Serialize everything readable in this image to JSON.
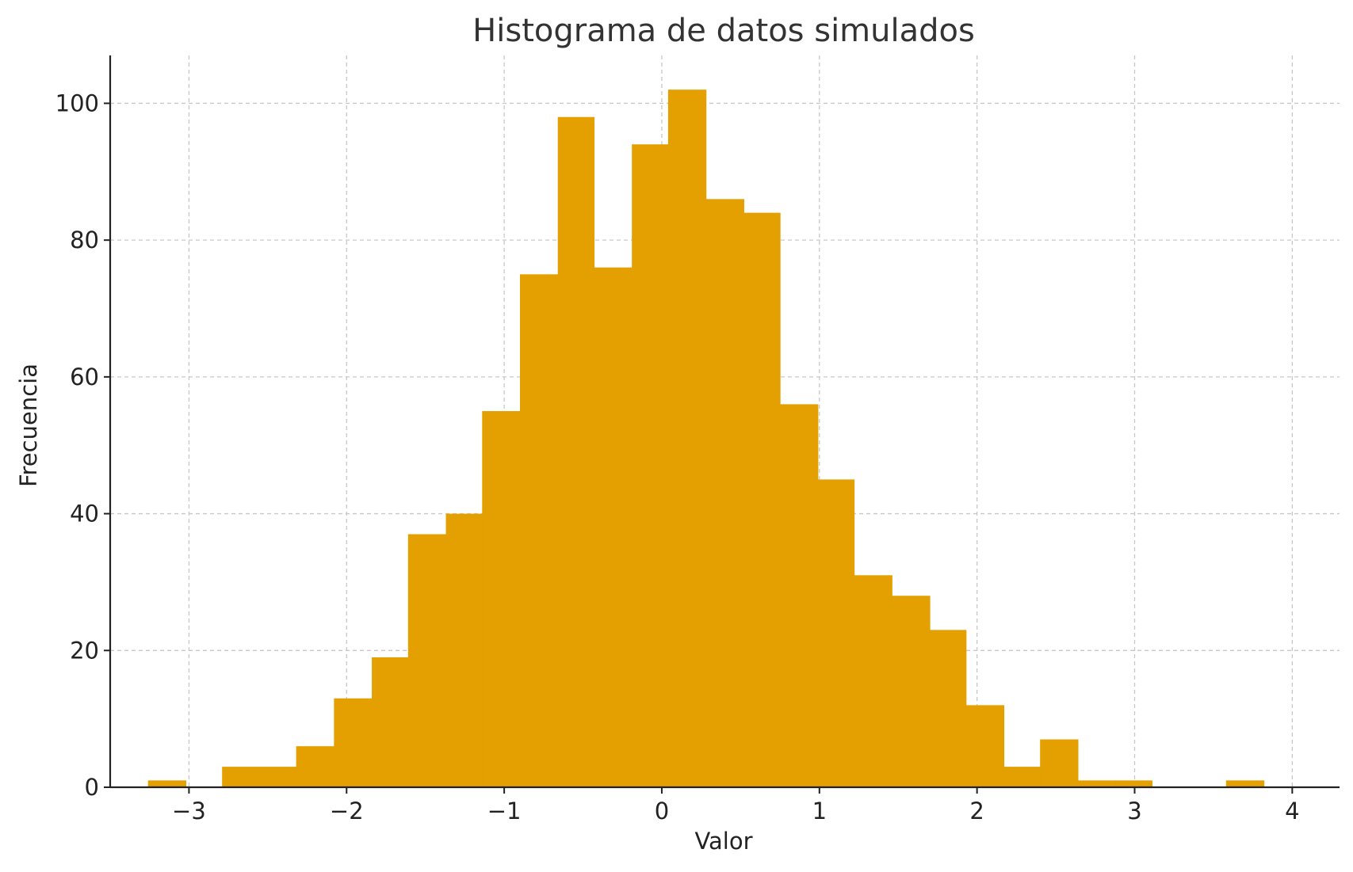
{
  "chart_data": {
    "type": "bar",
    "title": "Histograma de datos simulados",
    "xlabel": "Valor",
    "ylabel": "Frecuencia",
    "xlim": [
      -3.5,
      4.3
    ],
    "ylim": [
      0,
      107
    ],
    "x_ticks": [
      -3,
      -2,
      -1,
      0,
      1,
      2,
      3,
      4
    ],
    "x_tick_labels": [
      "−3",
      "−2",
      "−1",
      "0",
      "1",
      "2",
      "3",
      "4"
    ],
    "y_ticks": [
      0,
      20,
      40,
      60,
      80,
      100
    ],
    "y_tick_labels": [
      "0",
      "20",
      "40",
      "60",
      "80",
      "100"
    ],
    "bin_edges": [
      -3.26,
      -3.02,
      -2.79,
      -2.55,
      -2.32,
      -2.08,
      -1.84,
      -1.61,
      -1.37,
      -1.14,
      -0.9,
      -0.66,
      -0.43,
      -0.19,
      0.04,
      0.28,
      0.52,
      0.75,
      0.99,
      1.22,
      1.46,
      1.7,
      1.93,
      2.17,
      2.4,
      2.64,
      2.88,
      3.11,
      3.35,
      3.58,
      3.82
    ],
    "values": [
      1,
      0,
      3,
      3,
      6,
      13,
      19,
      37,
      40,
      55,
      75,
      98,
      76,
      94,
      102,
      86,
      84,
      56,
      45,
      31,
      28,
      23,
      12,
      3,
      7,
      1,
      1,
      0,
      0,
      1
    ],
    "bar_color": "#E3A000",
    "grid": true
  }
}
